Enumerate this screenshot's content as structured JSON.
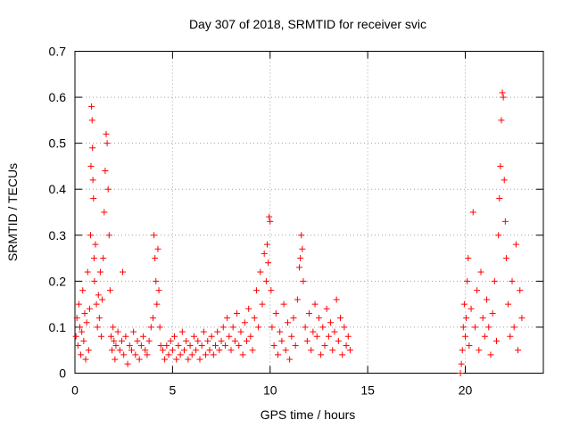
{
  "chart_data": {
    "type": "scatter",
    "title": "Day 307 of 2018, SRMTID for receiver svic",
    "xlabel": "GPS time / hours",
    "ylabel": "SRMTID / TECUs",
    "xlim": [
      0,
      24
    ],
    "ylim": [
      0,
      0.7
    ],
    "xticks": [
      0,
      5,
      10,
      15,
      20
    ],
    "xtick_labels": [
      "0",
      "5",
      "10",
      "15",
      "20"
    ],
    "yticks": [
      0,
      0.1,
      0.2,
      0.3,
      0.4,
      0.5,
      0.6,
      0.7
    ],
    "ytick_labels": [
      "0",
      "0.1",
      "0.2",
      "0.3",
      "0.4",
      "0.5",
      "0.6",
      "0.7"
    ],
    "grid": true,
    "marker": "+",
    "color": "#ff0000",
    "series": [
      {
        "name": "SRMTID",
        "points": [
          [
            0.05,
            0.08
          ],
          [
            0.1,
            0.12
          ],
          [
            0.15,
            0.06
          ],
          [
            0.2,
            0.15
          ],
          [
            0.25,
            0.1
          ],
          [
            0.3,
            0.04
          ],
          [
            0.35,
            0.09
          ],
          [
            0.4,
            0.18
          ],
          [
            0.45,
            0.07
          ],
          [
            0.5,
            0.13
          ],
          [
            0.55,
            0.03
          ],
          [
            0.6,
            0.11
          ],
          [
            0.65,
            0.22
          ],
          [
            0.7,
            0.05
          ],
          [
            0.75,
            0.14
          ],
          [
            0.8,
            0.3
          ],
          [
            0.82,
            0.45
          ],
          [
            0.85,
            0.58
          ],
          [
            0.88,
            0.55
          ],
          [
            0.9,
            0.49
          ],
          [
            0.92,
            0.42
          ],
          [
            0.95,
            0.38
          ],
          [
            0.98,
            0.25
          ],
          [
            1.0,
            0.2
          ],
          [
            1.05,
            0.28
          ],
          [
            1.1,
            0.15
          ],
          [
            1.15,
            0.1
          ],
          [
            1.2,
            0.17
          ],
          [
            1.25,
            0.12
          ],
          [
            1.3,
            0.22
          ],
          [
            1.35,
            0.08
          ],
          [
            1.4,
            0.16
          ],
          [
            1.45,
            0.25
          ],
          [
            1.5,
            0.35
          ],
          [
            1.55,
            0.44
          ],
          [
            1.6,
            0.52
          ],
          [
            1.65,
            0.5
          ],
          [
            1.7,
            0.4
          ],
          [
            1.75,
            0.3
          ],
          [
            1.8,
            0.18
          ],
          [
            1.85,
            0.08
          ],
          [
            1.9,
            0.05
          ],
          [
            1.95,
            0.1
          ],
          [
            2.0,
            0.07
          ],
          [
            2.05,
            0.03
          ],
          [
            2.1,
            0.06
          ],
          [
            2.2,
            0.09
          ],
          [
            2.3,
            0.05
          ],
          [
            2.4,
            0.07
          ],
          [
            2.45,
            0.22
          ],
          [
            2.5,
            0.04
          ],
          [
            2.6,
            0.08
          ],
          [
            2.7,
            0.02
          ],
          [
            2.8,
            0.06
          ],
          [
            2.9,
            0.05
          ],
          [
            3.0,
            0.09
          ],
          [
            3.1,
            0.04
          ],
          [
            3.2,
            0.07
          ],
          [
            3.3,
            0.03
          ],
          [
            3.4,
            0.06
          ],
          [
            3.5,
            0.08
          ],
          [
            3.6,
            0.05
          ],
          [
            3.7,
            0.04
          ],
          [
            3.8,
            0.07
          ],
          [
            3.9,
            0.1
          ],
          [
            4.0,
            0.12
          ],
          [
            4.05,
            0.3
          ],
          [
            4.1,
            0.25
          ],
          [
            4.15,
            0.2
          ],
          [
            4.2,
            0.15
          ],
          [
            4.25,
            0.27
          ],
          [
            4.3,
            0.18
          ],
          [
            4.35,
            0.1
          ],
          [
            4.4,
            0.06
          ],
          [
            4.5,
            0.05
          ],
          [
            4.6,
            0.03
          ],
          [
            4.7,
            0.06
          ],
          [
            4.8,
            0.04
          ],
          [
            4.9,
            0.07
          ],
          [
            5.0,
            0.05
          ],
          [
            5.1,
            0.08
          ],
          [
            5.2,
            0.03
          ],
          [
            5.3,
            0.06
          ],
          [
            5.4,
            0.04
          ],
          [
            5.5,
            0.09
          ],
          [
            5.6,
            0.05
          ],
          [
            5.7,
            0.07
          ],
          [
            5.8,
            0.03
          ],
          [
            5.9,
            0.06
          ],
          [
            6.0,
            0.04
          ],
          [
            6.1,
            0.08
          ],
          [
            6.2,
            0.05
          ],
          [
            6.3,
            0.07
          ],
          [
            6.4,
            0.03
          ],
          [
            6.5,
            0.06
          ],
          [
            6.6,
            0.09
          ],
          [
            6.7,
            0.04
          ],
          [
            6.8,
            0.07
          ],
          [
            6.9,
            0.05
          ],
          [
            7.0,
            0.08
          ],
          [
            7.1,
            0.04
          ],
          [
            7.2,
            0.06
          ],
          [
            7.3,
            0.09
          ],
          [
            7.4,
            0.05
          ],
          [
            7.5,
            0.07
          ],
          [
            7.6,
            0.1
          ],
          [
            7.7,
            0.06
          ],
          [
            7.8,
            0.12
          ],
          [
            7.9,
            0.08
          ],
          [
            8.0,
            0.05
          ],
          [
            8.1,
            0.1
          ],
          [
            8.2,
            0.07
          ],
          [
            8.3,
            0.13
          ],
          [
            8.4,
            0.06
          ],
          [
            8.5,
            0.09
          ],
          [
            8.6,
            0.04
          ],
          [
            8.7,
            0.11
          ],
          [
            8.8,
            0.07
          ],
          [
            8.9,
            0.14
          ],
          [
            9.0,
            0.08
          ],
          [
            9.1,
            0.05
          ],
          [
            9.2,
            0.12
          ],
          [
            9.3,
            0.18
          ],
          [
            9.4,
            0.1
          ],
          [
            9.5,
            0.22
          ],
          [
            9.6,
            0.15
          ],
          [
            9.7,
            0.26
          ],
          [
            9.8,
            0.2
          ],
          [
            9.85,
            0.28
          ],
          [
            9.9,
            0.24
          ],
          [
            9.95,
            0.34
          ],
          [
            10.0,
            0.33
          ],
          [
            10.05,
            0.18
          ],
          [
            10.1,
            0.1
          ],
          [
            10.2,
            0.06
          ],
          [
            10.3,
            0.13
          ],
          [
            10.4,
            0.04
          ],
          [
            10.5,
            0.09
          ],
          [
            10.6,
            0.07
          ],
          [
            10.7,
            0.15
          ],
          [
            10.8,
            0.05
          ],
          [
            10.9,
            0.11
          ],
          [
            11.0,
            0.03
          ],
          [
            11.1,
            0.08
          ],
          [
            11.2,
            0.12
          ],
          [
            11.3,
            0.06
          ],
          [
            11.4,
            0.16
          ],
          [
            11.5,
            0.23
          ],
          [
            11.55,
            0.25
          ],
          [
            11.6,
            0.3
          ],
          [
            11.65,
            0.27
          ],
          [
            11.7,
            0.2
          ],
          [
            11.8,
            0.1
          ],
          [
            11.9,
            0.07
          ],
          [
            12.0,
            0.13
          ],
          [
            12.1,
            0.05
          ],
          [
            12.2,
            0.09
          ],
          [
            12.3,
            0.15
          ],
          [
            12.4,
            0.08
          ],
          [
            12.5,
            0.12
          ],
          [
            12.6,
            0.04
          ],
          [
            12.7,
            0.1
          ],
          [
            12.8,
            0.06
          ],
          [
            12.9,
            0.14
          ],
          [
            13.0,
            0.08
          ],
          [
            13.1,
            0.11
          ],
          [
            13.2,
            0.05
          ],
          [
            13.3,
            0.09
          ],
          [
            13.4,
            0.16
          ],
          [
            13.5,
            0.07
          ],
          [
            13.6,
            0.12
          ],
          [
            13.7,
            0.04
          ],
          [
            13.8,
            0.1
          ],
          [
            13.9,
            0.06
          ],
          [
            14.0,
            0.08
          ],
          [
            14.1,
            0.05
          ],
          [
            19.75,
            0.0
          ],
          [
            19.8,
            0.02
          ],
          [
            19.85,
            0.05
          ],
          [
            19.9,
            0.1
          ],
          [
            19.95,
            0.15
          ],
          [
            20.0,
            0.08
          ],
          [
            20.05,
            0.12
          ],
          [
            20.1,
            0.2
          ],
          [
            20.15,
            0.25
          ],
          [
            20.2,
            0.06
          ],
          [
            20.3,
            0.14
          ],
          [
            20.4,
            0.35
          ],
          [
            20.5,
            0.1
          ],
          [
            20.6,
            0.18
          ],
          [
            20.7,
            0.05
          ],
          [
            20.8,
            0.22
          ],
          [
            20.9,
            0.12
          ],
          [
            21.0,
            0.08
          ],
          [
            21.1,
            0.16
          ],
          [
            21.2,
            0.1
          ],
          [
            21.3,
            0.04
          ],
          [
            21.4,
            0.13
          ],
          [
            21.5,
            0.2
          ],
          [
            21.6,
            0.07
          ],
          [
            21.7,
            0.3
          ],
          [
            21.75,
            0.38
          ],
          [
            21.8,
            0.45
          ],
          [
            21.85,
            0.55
          ],
          [
            21.9,
            0.61
          ],
          [
            21.95,
            0.6
          ],
          [
            22.0,
            0.42
          ],
          [
            22.05,
            0.33
          ],
          [
            22.1,
            0.25
          ],
          [
            22.2,
            0.15
          ],
          [
            22.3,
            0.08
          ],
          [
            22.4,
            0.2
          ],
          [
            22.5,
            0.1
          ],
          [
            22.6,
            0.28
          ],
          [
            22.7,
            0.05
          ],
          [
            22.8,
            0.18
          ],
          [
            22.9,
            0.12
          ]
        ]
      }
    ]
  }
}
